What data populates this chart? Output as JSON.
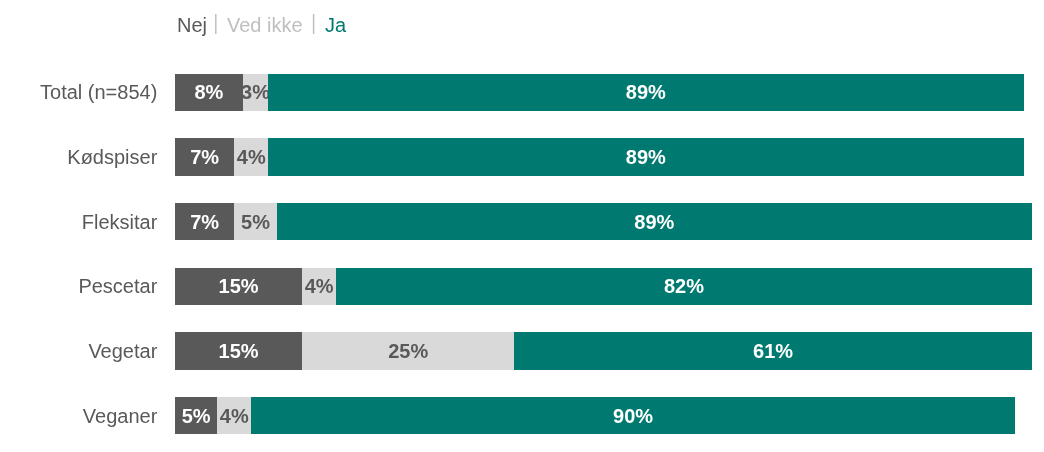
{
  "chart_data": {
    "type": "bar",
    "orientation": "horizontal",
    "stacked": true,
    "tick_labels": "y",
    "legend": "top left",
    "categories": [
      "Total (n=854)",
      "Kødspiser",
      "Fleksitar",
      "Pescetar",
      "Vegetar",
      "Veganer"
    ],
    "series": [
      {
        "name": "Nej",
        "color": "#595959",
        "values": [
          8,
          7,
          7,
          15,
          15,
          5
        ],
        "value_labels": [
          "8%",
          "7%",
          "7%",
          "15%",
          "15%",
          "5%"
        ]
      },
      {
        "name": "Ved ikke",
        "color": "#d9d9d9",
        "values": [
          3,
          4,
          5,
          4,
          25,
          4
        ],
        "value_labels": [
          "3%",
          "4%",
          "5%",
          "4%",
          "25%",
          "4%"
        ]
      },
      {
        "name": "Ja",
        "color": "#007a70",
        "values": [
          89,
          89,
          89,
          82,
          61,
          90
        ],
        "value_labels": [
          "89%",
          "89%",
          "89%",
          "82%",
          "61%",
          "90%"
        ]
      }
    ]
  }
}
